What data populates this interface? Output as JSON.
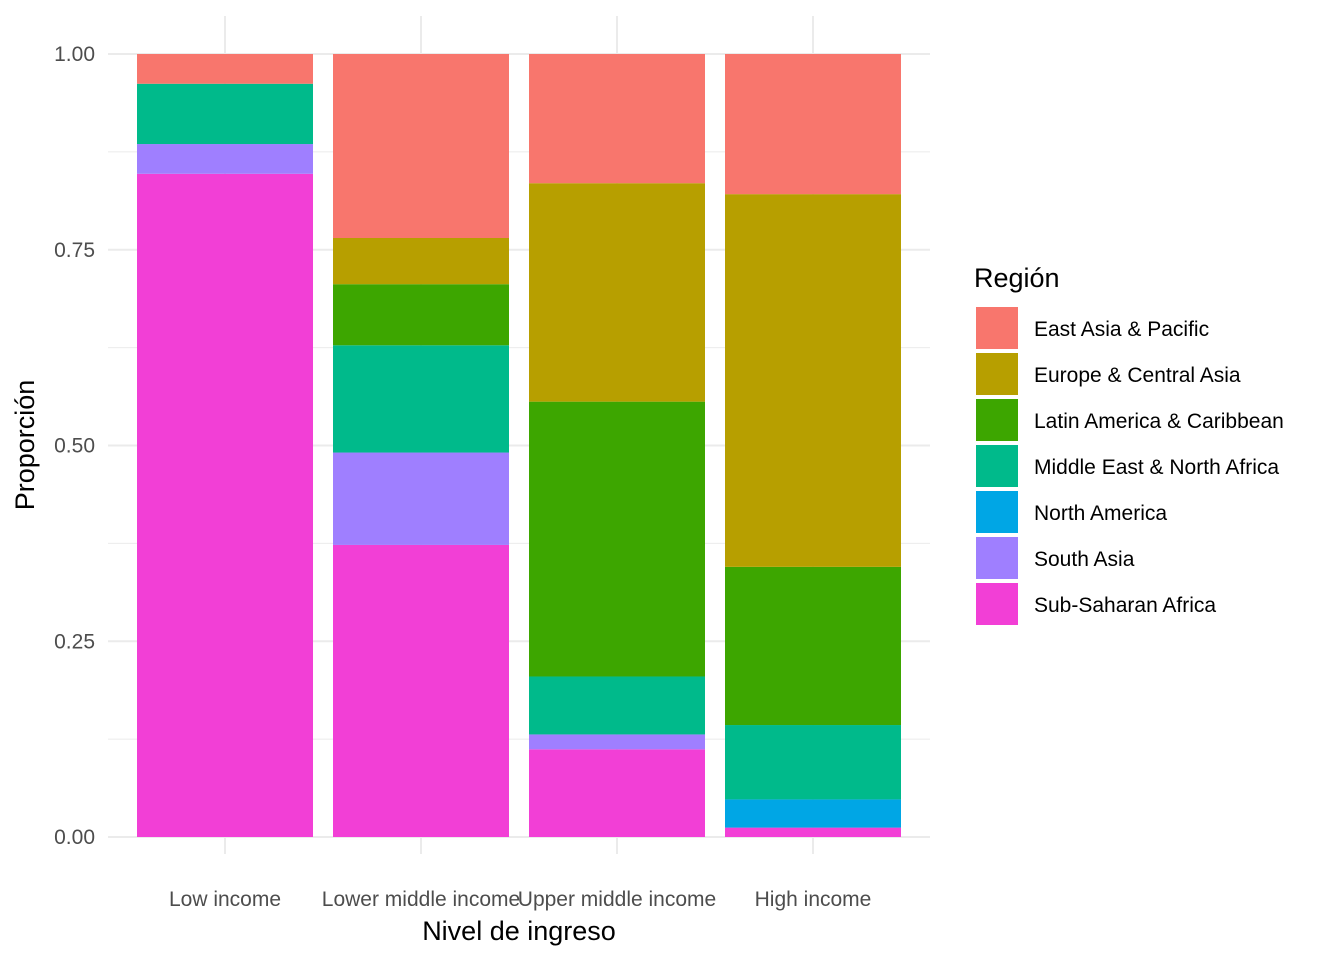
{
  "chart_data": {
    "type": "bar",
    "stacked": true,
    "xlabel": "Nivel de ingreso",
    "ylabel": "Proporción",
    "ylim": [
      0,
      1
    ],
    "yticks": [
      "0.00",
      "0.25",
      "0.50",
      "0.75",
      "1.00"
    ],
    "ytick_values": [
      0,
      0.25,
      0.5,
      0.75,
      1
    ],
    "grid": true,
    "legend_title": "Región",
    "legend_position": "right",
    "categories": [
      "Low income",
      "Lower middle income",
      "Upper middle income",
      "High income"
    ],
    "series": [
      {
        "name": "East Asia & Pacific",
        "color": "#F8766D",
        "values": [
          0.038,
          0.235,
          0.165,
          0.179
        ]
      },
      {
        "name": "Europe & Central Asia",
        "color": "#B79F00",
        "values": [
          0.0,
          0.059,
          0.279,
          0.476
        ]
      },
      {
        "name": "Latin America & Caribbean",
        "color": "#3DA600",
        "values": [
          0.0,
          0.078,
          0.351,
          0.202
        ]
      },
      {
        "name": "Middle East & North Africa",
        "color": "#00BA8B",
        "values": [
          0.077,
          0.137,
          0.074,
          0.095
        ]
      },
      {
        "name": "North America",
        "color": "#00A6E5",
        "values": [
          0.0,
          0.0,
          0.0,
          0.036
        ]
      },
      {
        "name": "South Asia",
        "color": "#9F7FFF",
        "values": [
          0.038,
          0.118,
          0.019,
          0.0
        ]
      },
      {
        "name": "Sub-Saharan Africa",
        "color": "#F23FD6",
        "values": [
          0.847,
          0.373,
          0.112,
          0.012
        ]
      }
    ]
  }
}
